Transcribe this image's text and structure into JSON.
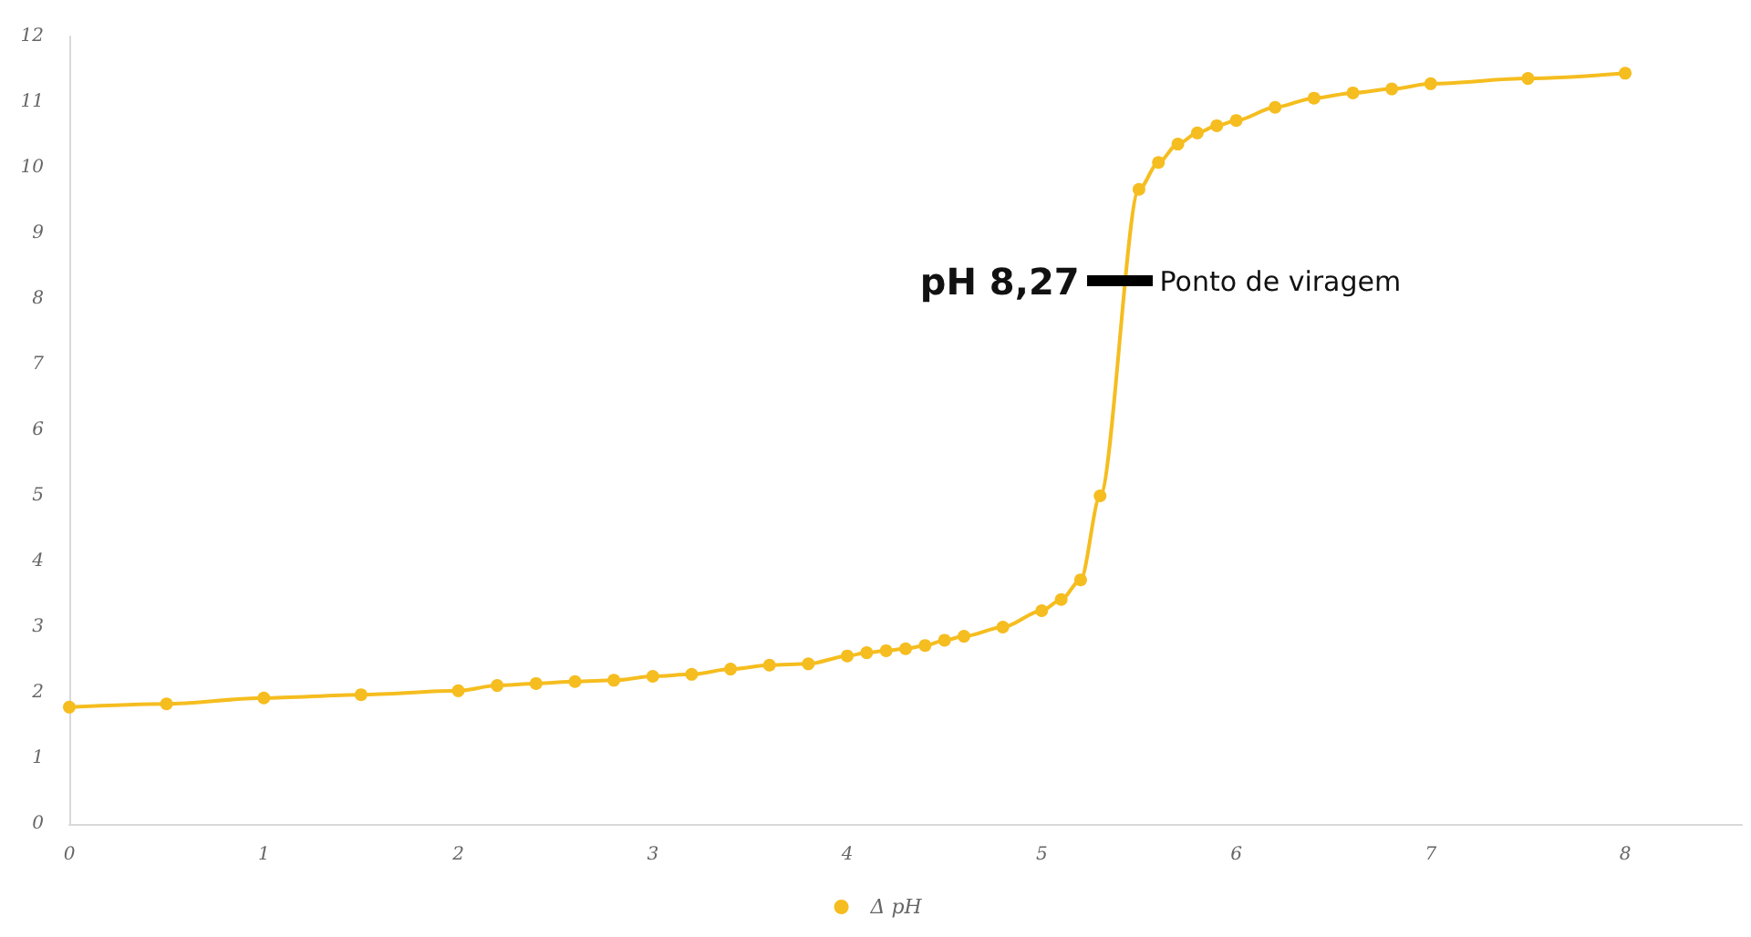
{
  "chart_data": {
    "type": "line",
    "x": [
      0,
      0.5,
      1,
      1.5,
      2,
      2.2,
      2.4,
      2.6,
      2.8,
      3,
      3.2,
      3.4,
      3.6,
      3.8,
      4,
      4.1,
      4.2,
      4.3,
      4.4,
      4.5,
      4.6,
      4.8,
      5,
      5.1,
      5.2,
      5.3,
      5.5,
      5.6,
      5.7,
      5.8,
      5.9,
      6,
      6.2,
      6.4,
      6.6,
      6.8,
      7,
      7.5,
      8
    ],
    "series": [
      {
        "name": "Δ pH",
        "color": "#f5bd1f",
        "values": [
          1.78,
          1.83,
          1.92,
          1.97,
          2.03,
          2.11,
          2.14,
          2.17,
          2.19,
          2.25,
          2.28,
          2.36,
          2.42,
          2.44,
          2.56,
          2.61,
          2.64,
          2.67,
          2.72,
          2.8,
          2.86,
          3.0,
          3.25,
          3.42,
          3.72,
          5.0,
          9.67,
          10.08,
          10.36,
          10.53,
          10.64,
          10.72,
          10.92,
          11.06,
          11.14,
          11.2,
          11.28,
          11.36,
          11.44
        ]
      }
    ],
    "xlim": [
      0,
      8.6
    ],
    "xticks": [
      0,
      1,
      2,
      3,
      4,
      5,
      6,
      7,
      8
    ],
    "ylim": [
      0,
      12
    ],
    "yticks": [
      0,
      1,
      2,
      3,
      4,
      5,
      6,
      7,
      8,
      9,
      10,
      11,
      12
    ],
    "annotations": [
      {
        "text": "pH 8,27",
        "x": 5.4,
        "y": 8.27
      },
      {
        "text": "Ponto de viragem",
        "x": 5.4,
        "y": 8.27
      }
    ],
    "marker": "circle",
    "line_style": "solid",
    "legend": "bottom",
    "grid": false
  }
}
